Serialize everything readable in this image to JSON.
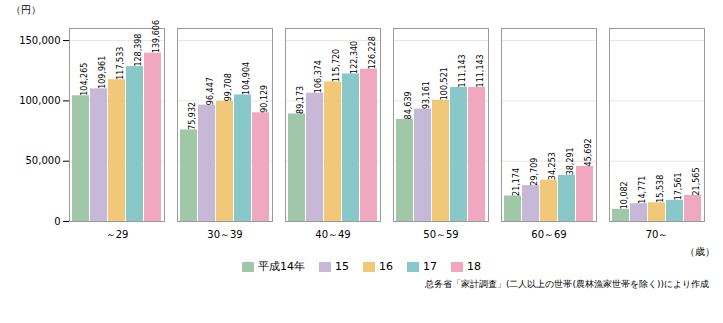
{
  "chart_data": {
    "type": "bar",
    "ylabel": "（円）",
    "xlabel": "（歳）",
    "caption": "总务省「家計調査」(二人以上の世帯(農林漁家世帯を除く))により作成",
    "categories": [
      "～29",
      "30～39",
      "40～49",
      "50～59",
      "60～69",
      "70～"
    ],
    "series": [
      {
        "name": "平成14年",
        "color": "#a0c8a8",
        "values": [
          104265,
          75932,
          89173,
          84639,
          21174,
          10082
        ],
        "value_labels": [
          "104,265",
          "75,932",
          "89,173",
          "84,639",
          "21,174",
          "10,082"
        ]
      },
      {
        "name": "15",
        "color": "#c8b8d8",
        "values": [
          109961,
          96447,
          106374,
          93161,
          29709,
          14771
        ],
        "value_labels": [
          "109,961",
          "96,447",
          "106,374",
          "93,161",
          "29,709",
          "14,771"
        ]
      },
      {
        "name": "16",
        "color": "#f0c878",
        "values": [
          117533,
          99708,
          115720,
          100521,
          34253,
          15538
        ],
        "value_labels": [
          "117,533",
          "99,708",
          "115,720",
          "100,521",
          "34,253",
          "15,538"
        ]
      },
      {
        "name": "17",
        "color": "#88c8c8",
        "values": [
          128398,
          104904,
          122340,
          111143,
          38291,
          17561
        ],
        "value_labels": [
          "128,398",
          "104,904",
          "122,340",
          "111,143",
          "38,291",
          "17,561"
        ]
      },
      {
        "name": "18",
        "color": "#f0a8c0",
        "values": [
          139606,
          90129,
          126228,
          111143,
          45692,
          21565
        ],
        "value_labels": [
          "139,606",
          "90,129",
          "126,228",
          "111,143",
          "45,692",
          "21,565"
        ]
      }
    ],
    "ylim": [
      0,
      160000
    ],
    "yticks": [
      0,
      {
        "value": 50000,
        "label": "50,000"
      },
      {
        "value": 100000,
        "label": "100,000"
      },
      {
        "value": 150000,
        "label": "150,000"
      }
    ],
    "grid": true,
    "data_labels": true,
    "legend": "bottom"
  }
}
